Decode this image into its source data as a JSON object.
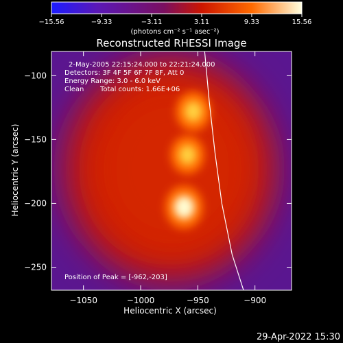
{
  "chart_data": {
    "type": "heatmap",
    "title": "Reconstructed RHESSI Image",
    "xlabel": "Heliocentric X (arcsec)",
    "ylabel": "Heliocentric Y (arcsec)",
    "xlim": [
      -1078,
      -868
    ],
    "ylim": [
      -268,
      -81
    ],
    "x_ticks": [
      -1050,
      -1000,
      -950,
      -900
    ],
    "x_tick_labels": [
      "−1050",
      "−1000",
      "−950",
      "−900"
    ],
    "y_ticks": [
      -100,
      -150,
      -200,
      -250
    ],
    "y_tick_labels": [
      "−100",
      "−150",
      "−200",
      "−250"
    ],
    "colorbar": {
      "range": [
        -15.56,
        15.56
      ],
      "ticks": [
        -15.56,
        -9.33,
        -3.11,
        3.11,
        9.33,
        15.56
      ],
      "tick_labels": [
        "−15.56",
        "−9.33",
        "−3.11",
        "3.11",
        "9.33",
        "15.56"
      ],
      "unit_label": "(photons cm⁻² s⁻¹ asec⁻²)"
    },
    "colors": {
      "background": "#000000",
      "low": "#1c1cff",
      "floor": "#5a1690",
      "mid": "#cc1500",
      "high": "#ff6a00",
      "peak": "#fffbd0",
      "limb_line": "#ffffff"
    },
    "info": {
      "time_range": "2-May-2005 22:15:24.000 to 22:21:24.000",
      "detectors": "Detectors: 3F 4F 5F 6F 7F 8F, Att 0",
      "energy": "Energy Range: 3.0 - 6.0 keV",
      "method": "Clean",
      "counts": "Total counts: 1.66E+06",
      "peak": "Position of Peak = [-962,-203]"
    },
    "sources": [
      {
        "x": -962,
        "y": -203,
        "intensity": 15.5
      },
      {
        "x": -959,
        "y": -162,
        "intensity": 11.0
      },
      {
        "x": -954,
        "y": -128,
        "intensity": 12.0
      }
    ],
    "background_disk": {
      "x": -975,
      "y": -173,
      "intensity": 5.5
    },
    "solar_limb": [
      [
        -944,
        -81
      ],
      [
        -940,
        -120
      ],
      [
        -935,
        -160
      ],
      [
        -929,
        -200
      ],
      [
        -920,
        -240
      ],
      [
        -910,
        -268
      ]
    ]
  },
  "footer": {
    "timestamp": "29-Apr-2022 15:30"
  }
}
